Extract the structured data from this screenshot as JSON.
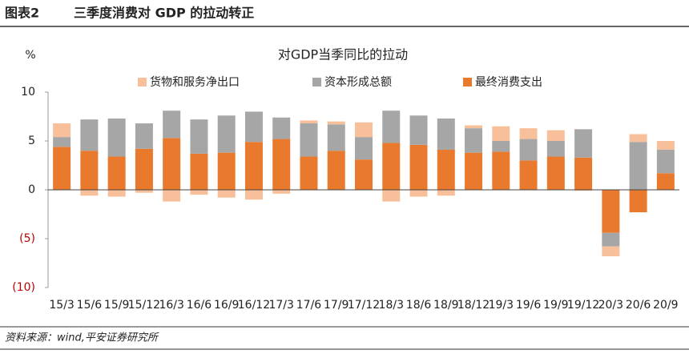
{
  "header": {
    "label": "图表2",
    "title": "三季度消费对 GDP 的拉动转正"
  },
  "footer": "资料来源：wind,平安证券研究所",
  "chart_data": {
    "type": "stacked-bar",
    "title": "对GDP当季同比的拉动",
    "y_label": "%",
    "categories": [
      "15/3",
      "15/6",
      "15/9",
      "15/12",
      "16/3",
      "16/6",
      "16/9",
      "16/12",
      "17/3",
      "17/6",
      "17/9",
      "17/12",
      "18/3",
      "18/6",
      "18/9",
      "18/12",
      "19/3",
      "19/6",
      "19/9",
      "19/12",
      "20/3",
      "20/6",
      "20/9"
    ],
    "series": [
      {
        "name": "货物和服务净出口",
        "color": "#f8c09a",
        "values": [
          1.4,
          -0.6,
          -0.7,
          -0.3,
          -1.2,
          -0.5,
          -0.8,
          -1.0,
          -0.4,
          0.3,
          0.3,
          1.5,
          -1.2,
          -0.7,
          -0.6,
          0.3,
          1.5,
          1.1,
          1.1,
          -0.1,
          -1.0,
          0.8,
          0.9
        ]
      },
      {
        "name": "资本形成总额",
        "color": "#a6a6a6",
        "values": [
          1.0,
          3.2,
          3.9,
          2.6,
          2.8,
          3.5,
          3.8,
          3.1,
          2.2,
          3.4,
          2.7,
          2.3,
          3.3,
          3.0,
          3.2,
          2.5,
          1.1,
          2.2,
          1.6,
          2.9,
          -1.4,
          4.9,
          2.4
        ]
      },
      {
        "name": "最终消费支出",
        "color": "#e97a2d",
        "values": [
          4.4,
          4.0,
          3.4,
          4.2,
          5.3,
          3.7,
          3.8,
          4.9,
          5.2,
          3.4,
          4.0,
          3.1,
          4.8,
          4.6,
          4.1,
          3.8,
          3.9,
          3.0,
          3.4,
          3.3,
          -4.4,
          -2.3,
          1.7
        ]
      }
    ],
    "ylim": [
      -10,
      10
    ],
    "yticks": [
      {
        "value": -10,
        "label": "(10)"
      },
      {
        "value": -5,
        "label": "(5)"
      },
      0,
      5,
      10
    ]
  }
}
